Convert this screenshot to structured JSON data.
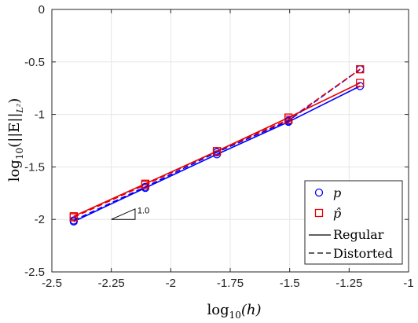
{
  "chart_data": {
    "type": "line",
    "xlim": [
      -2.5,
      -1
    ],
    "ylim": [
      -2.5,
      0
    ],
    "xticks": [
      -2.5,
      -2.25,
      -2,
      -1.75,
      -1.5,
      -1.25,
      -1
    ],
    "xtick_labels": [
      "-2.5",
      "-2.25",
      "-2",
      "-1.75",
      "-1.5",
      "-1.25",
      "-1"
    ],
    "yticks": [
      -2.5,
      -2,
      -1.5,
      -1,
      -0.5,
      0
    ],
    "ytick_labels": [
      "-2.5",
      "-2",
      "-1.5",
      "-1",
      "-0.5",
      "0"
    ],
    "xlabel_base": "log",
    "xlabel_sub": "10",
    "xlabel_arg": "(h)",
    "ylabel_base": "log",
    "ylabel_sub": "10",
    "ylabel_arg": "(||E||",
    "ylabel_norm_sub": "L²",
    "ylabel_close": ")",
    "grid": true,
    "legend_placement": "bottom-right",
    "legend": {
      "p": "p",
      "p_hat": "p̂",
      "regular": "Regular",
      "distorted": "Distorted"
    },
    "colors": {
      "p": "#0000ff",
      "p_hat": "#e60000"
    },
    "slope_triangle": {
      "label": "1.0",
      "x0": -2.25,
      "y0": -2.0,
      "x1": -2.15,
      "y1": -1.9
    },
    "series": [
      {
        "marker": "circle",
        "color": "#0000ff",
        "style": "solid",
        "x": [
          -2.408,
          -2.107,
          -1.806,
          -1.505,
          -1.204
        ],
        "y": [
          -2.02,
          -1.7,
          -1.38,
          -1.07,
          -0.73
        ]
      },
      {
        "marker": "square",
        "color": "#e60000",
        "style": "solid",
        "x": [
          -2.408,
          -2.107,
          -1.806,
          -1.505,
          -1.204
        ],
        "y": [
          -1.97,
          -1.66,
          -1.35,
          -1.03,
          -0.7
        ]
      },
      {
        "marker": "circle",
        "color": "#0000ff",
        "style": "dashed",
        "x": [
          -2.408,
          -2.107,
          -1.806,
          -1.505,
          -1.204
        ],
        "y": [
          -2.01,
          -1.69,
          -1.36,
          -1.06,
          -0.57
        ]
      },
      {
        "marker": "square",
        "color": "#e60000",
        "style": "dashed",
        "x": [
          -2.408,
          -2.107,
          -1.806,
          -1.505,
          -1.204
        ],
        "y": [
          -1.98,
          -1.67,
          -1.35,
          -1.05,
          -0.57
        ]
      }
    ]
  }
}
